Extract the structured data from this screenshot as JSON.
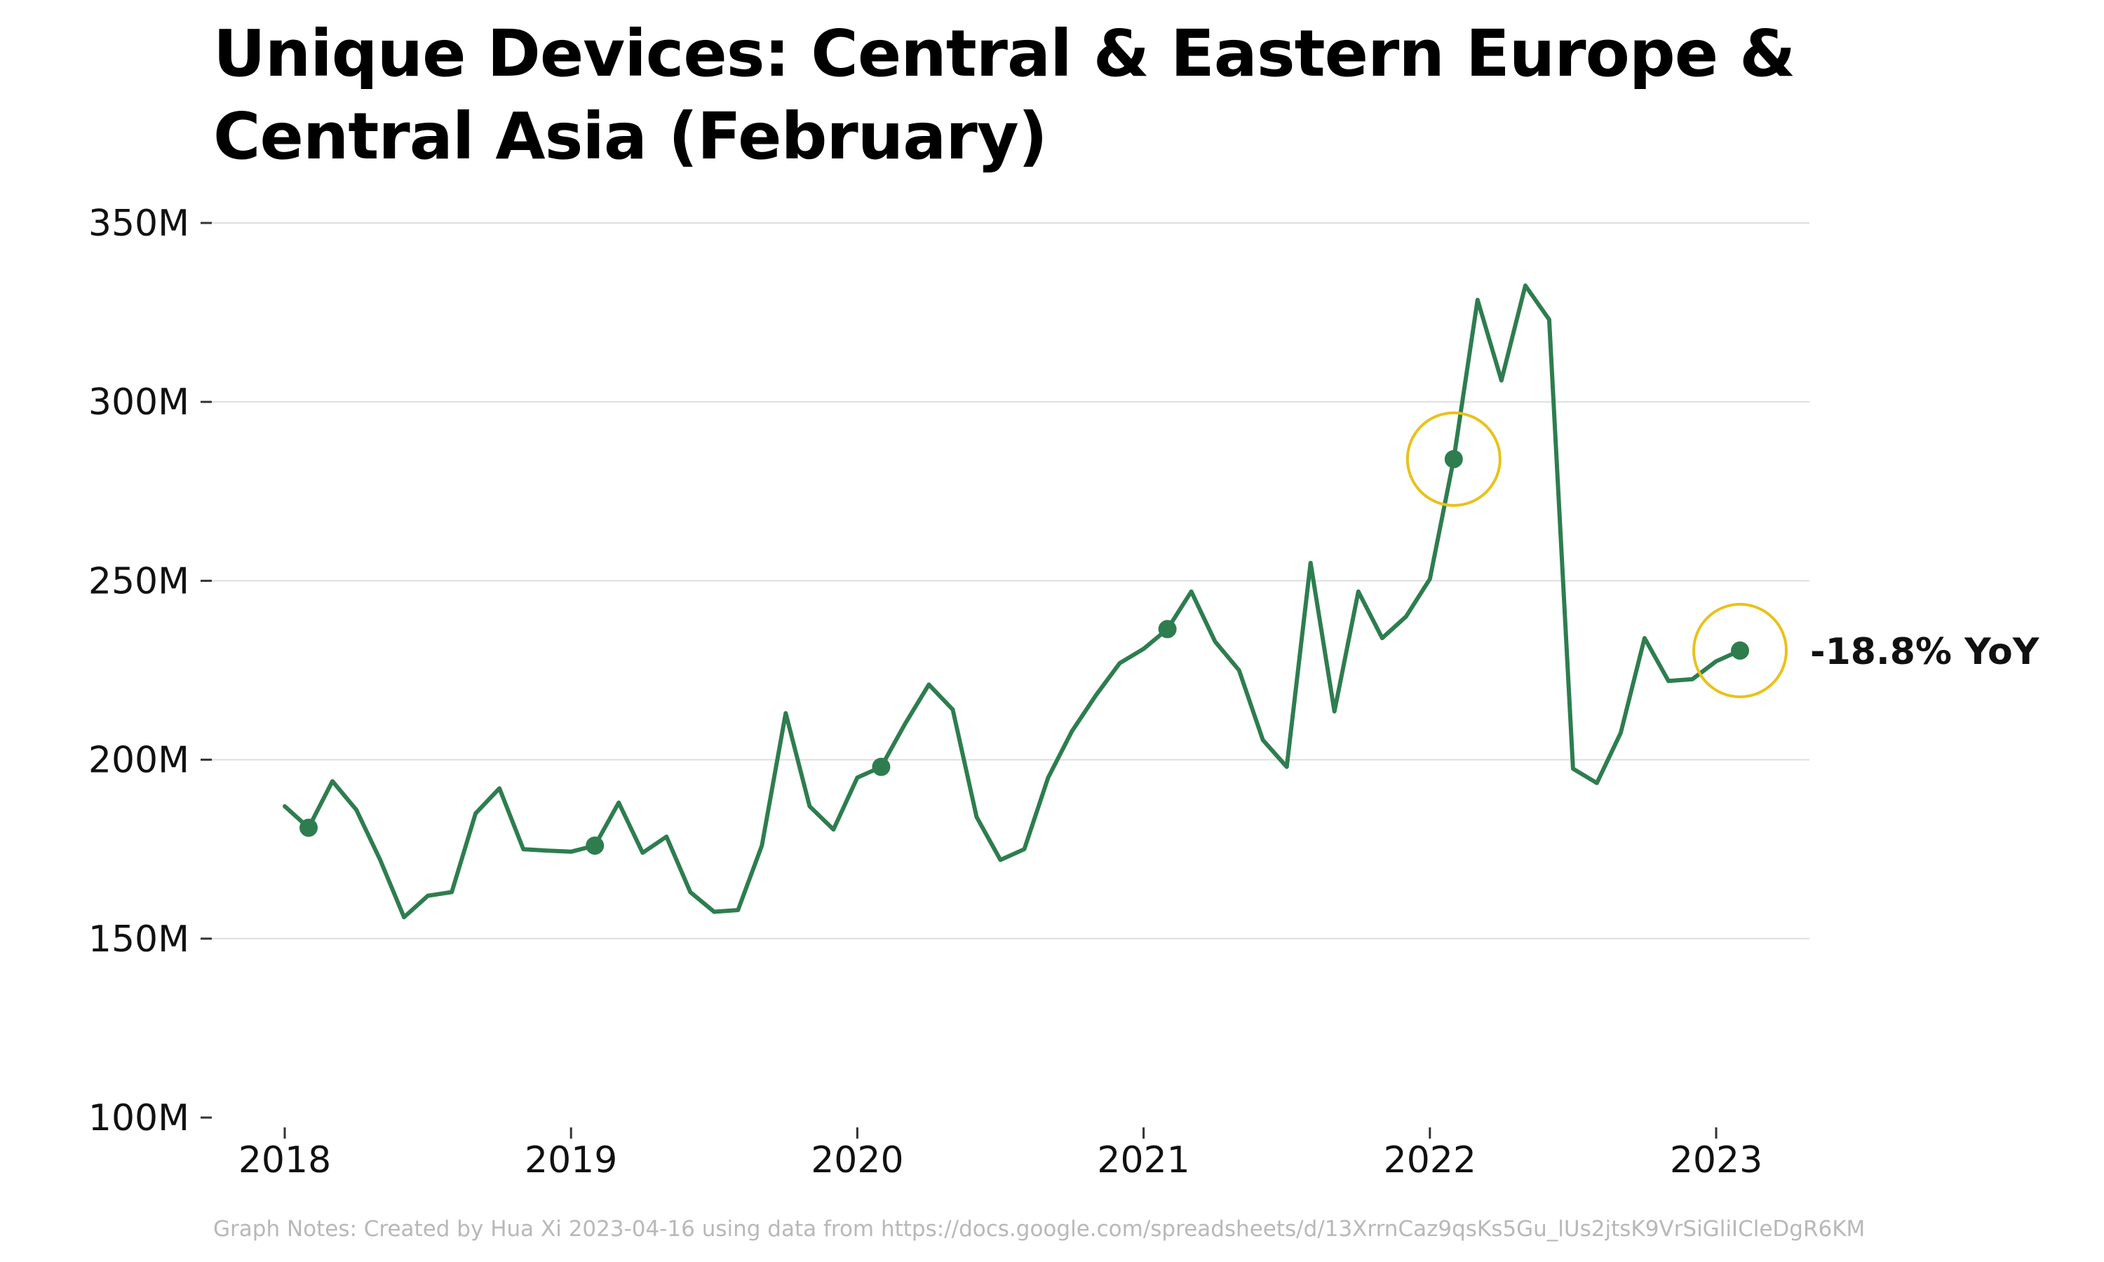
{
  "chart_data": {
    "type": "line",
    "title": "Unique Devices: Central & Eastern Europe & Central Asia (February)",
    "xlabel": "",
    "ylabel": "",
    "ylim": [
      100,
      350
    ],
    "y_unit": "M",
    "y_ticks": [
      {
        "value": 100,
        "label": "100M"
      },
      {
        "value": 150,
        "label": "150M"
      },
      {
        "value": 200,
        "label": "200M"
      },
      {
        "value": 250,
        "label": "250M"
      },
      {
        "value": 300,
        "label": "300M"
      },
      {
        "value": 350,
        "label": "350M"
      }
    ],
    "x_ticks": [
      {
        "value": "2018-01",
        "label": "2018"
      },
      {
        "value": "2019-01",
        "label": "2019"
      },
      {
        "value": "2020-01",
        "label": "2020"
      },
      {
        "value": "2021-01",
        "label": "2021"
      },
      {
        "value": "2022-01",
        "label": "2022"
      },
      {
        "value": "2023-01",
        "label": "2023"
      }
    ],
    "grid": "horizontal",
    "series": [
      {
        "color": "#2e7d4f",
        "x": [
          "2018-01",
          "2018-02",
          "2018-03",
          "2018-04",
          "2018-05",
          "2018-06",
          "2018-07",
          "2018-08",
          "2018-09",
          "2018-10",
          "2018-11",
          "2018-12",
          "2019-01",
          "2019-02",
          "2019-03",
          "2019-04",
          "2019-05",
          "2019-06",
          "2019-07",
          "2019-08",
          "2019-09",
          "2019-10",
          "2019-11",
          "2019-12",
          "2020-01",
          "2020-02",
          "2020-03",
          "2020-04",
          "2020-05",
          "2020-06",
          "2020-07",
          "2020-08",
          "2020-09",
          "2020-10",
          "2020-11",
          "2020-12",
          "2021-01",
          "2021-02",
          "2021-03",
          "2021-04",
          "2021-05",
          "2021-06",
          "2021-07",
          "2021-08",
          "2021-09",
          "2021-10",
          "2021-11",
          "2021-12",
          "2022-01",
          "2022-02",
          "2022-03",
          "2022-04",
          "2022-05",
          "2022-06",
          "2022-07",
          "2022-08",
          "2022-09",
          "2022-10",
          "2022-11",
          "2022-12",
          "2023-01",
          "2023-02"
        ],
        "y": [
          187,
          181,
          194,
          186,
          172,
          156,
          162,
          163,
          185,
          192,
          175,
          174.6,
          174.3,
          176,
          188,
          174,
          178.5,
          163,
          157.5,
          158,
          176,
          213,
          187,
          180.5,
          195,
          198,
          210,
          221,
          214,
          184,
          172,
          175,
          195,
          208,
          218,
          227,
          231,
          236.5,
          247,
          233,
          225,
          205.5,
          198,
          255,
          213.5,
          247,
          234,
          240,
          250.5,
          284,
          328.5,
          306,
          332.5,
          323,
          197.5,
          193.5,
          207.5,
          234,
          222,
          222.5,
          227.5,
          230.5
        ]
      }
    ],
    "markers": [
      {
        "x": "2018-02",
        "y": 181
      },
      {
        "x": "2019-02",
        "y": 176
      },
      {
        "x": "2020-02",
        "y": 198
      },
      {
        "x": "2021-02",
        "y": 236.5
      },
      {
        "x": "2022-02",
        "y": 284
      },
      {
        "x": "2023-02",
        "y": 230.5
      }
    ],
    "highlight_circles": [
      {
        "x": "2022-02",
        "y": 284,
        "color": "#e8c21a"
      },
      {
        "x": "2023-02",
        "y": 230.5,
        "color": "#e8c21a"
      }
    ],
    "annotations": [
      {
        "text": "-18.8% YoY",
        "x": "2023-02",
        "y": 230.5
      }
    ],
    "notes": "Graph Notes: Created by Hua Xi 2023-04-16 using data from https://docs.google.com/spreadsheets/d/13XrrnCaz9qsKs5Gu_lUs2jtsK9VrSiGliICleDgR6KM",
    "colors": {
      "line": "#2e7d4f",
      "highlight": "#e8c21a",
      "grid": "#dddddd",
      "text": "#111111",
      "notes": "#b8b8b8"
    }
  }
}
